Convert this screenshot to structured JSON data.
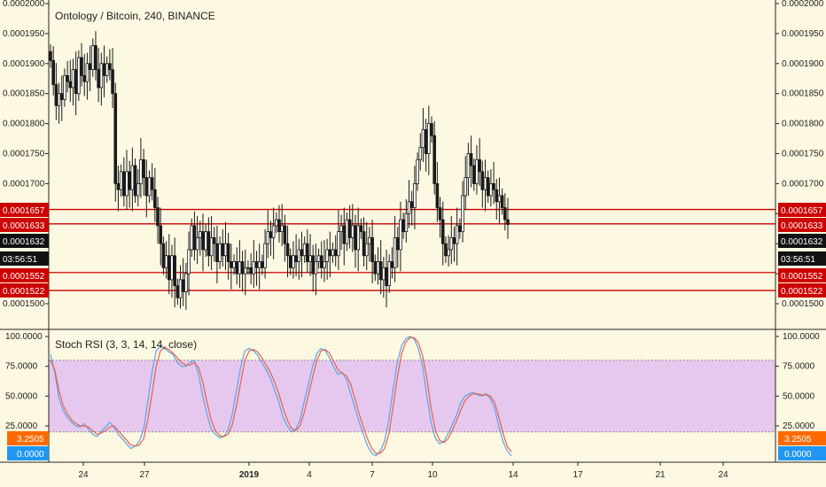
{
  "chart_title": "Ontology / Bitcoin, 240, BINANCE",
  "indicator_title": "Stoch RSI (3, 3, 14, 14, close)",
  "colors": {
    "background": "#fdf8e1",
    "candle": "#1a1a1a",
    "level_line": "#cc0000",
    "stoch_k": "#58a6ea",
    "stoch_d": "#e8604c",
    "stoch_band": "#e6c8ee"
  },
  "chart_data": [
    {
      "type": "candlestick",
      "title": "Ontology / Bitcoin, 240, BINANCE",
      "y_ticks": [
        "0.0001500",
        "0.0001550",
        "0.0001600",
        "0.0001650",
        "0.0001700",
        "0.0001750",
        "0.0001800",
        "0.0001850",
        "0.0001900",
        "0.0001950",
        "0.0002000"
      ],
      "ylim": [
        0.000148,
        0.000201
      ],
      "x_ticks": [
        "24",
        "27",
        "2019",
        "4",
        "7",
        "10",
        "14",
        "17",
        "21",
        "24"
      ],
      "horizontal_levels": [
        0.0001657,
        0.0001633,
        0.0001552,
        0.0001522
      ],
      "price_labels": [
        {
          "text": "0.0001657",
          "color": "#cc0000"
        },
        {
          "text": "0.0001633",
          "color": "#cc0000"
        },
        {
          "text": "0.0001632",
          "color": "#111111"
        },
        {
          "text": "03:56:51",
          "color": "#111111"
        },
        {
          "text": "0.0001552",
          "color": "#cc0000"
        },
        {
          "text": "0.0001522",
          "color": "#cc0000"
        }
      ],
      "closes": [
        0.0001905,
        0.0001865,
        0.000183,
        0.000185,
        0.000184,
        0.000188,
        0.000187,
        0.000186,
        0.000189,
        0.000185,
        0.000191,
        0.000188,
        0.000187,
        0.00019,
        0.000189,
        0.000193,
        0.000189,
        0.000186,
        0.00019,
        0.000188,
        0.00019,
        0.000189,
        0.000185,
        0.00017,
        0.000169,
        0.000172,
        0.000168,
        0.000172,
        0.000169,
        0.000173,
        0.000168,
        0.00017,
        0.000174,
        0.000171,
        0.000168,
        0.000171,
        0.000169,
        0.000166,
        0.000163,
        0.00016,
        0.000156,
        0.000158,
        0.000154,
        0.000158,
        0.000153,
        0.000151,
        0.000154,
        0.000152,
        0.000155,
        0.000159,
        0.000163,
        0.000159,
        0.000161,
        0.000162,
        0.000159,
        0.000162,
        0.000158,
        0.000161,
        0.00016,
        0.000157,
        0.00016,
        0.000158,
        0.00016,
        0.000157,
        0.000156,
        0.000157,
        0.000155,
        0.000157,
        0.000155,
        0.000156,
        0.000156,
        0.000155,
        0.000157,
        0.000156,
        0.000157,
        0.000156,
        0.00016,
        0.000162,
        0.000161,
        0.000163,
        0.000164,
        0.000162,
        0.000163,
        0.00016,
        0.000158,
        0.000156,
        0.000158,
        0.000157,
        0.000159,
        0.000158,
        0.00016,
        0.000157,
        0.000158,
        0.000155,
        0.000157,
        0.000158,
        0.000156,
        0.000157,
        0.000159,
        0.000158,
        0.000159,
        0.000158,
        0.000162,
        0.000163,
        0.00016,
        0.000164,
        0.000161,
        0.000163,
        0.000159,
        0.000163,
        0.000162,
        0.000158,
        0.00016,
        0.000161,
        0.000157,
        0.000155,
        0.000157,
        0.000154,
        0.000156,
        0.000153,
        0.000157,
        0.000156,
        0.000161,
        0.000159,
        0.000164,
        0.000162,
        0.000165,
        0.000167,
        0.000166,
        0.00017,
        0.000174,
        0.000176,
        0.000179,
        0.000175,
        0.00018,
        0.000178,
        0.00017,
        0.000166,
        0.000164,
        0.00016,
        0.000158,
        0.000159,
        0.000161,
        0.00016,
        0.000163,
        0.000162,
        0.000168,
        0.000171,
        0.000175,
        0.000173,
        0.00017,
        0.000174,
        0.000172,
        0.000169,
        0.000171,
        0.000168,
        0.00017,
        0.000169,
        0.000167,
        0.000168,
        0.000166,
        0.000164,
        0.0001632
      ]
    },
    {
      "type": "line",
      "title": "Stoch RSI (3, 3, 14, 14, close)",
      "y_ticks": [
        "25.0000",
        "50.0000",
        "75.0000",
        "100.0000"
      ],
      "ylim": [
        -8,
        104
      ],
      "band": [
        20,
        80
      ],
      "value_labels": [
        {
          "text": "3.2505",
          "color": "#ff6a00"
        },
        {
          "text": "0.0000",
          "color": "#2196f3"
        }
      ],
      "series": [
        {
          "values": [
            85,
            70,
            48,
            38,
            32,
            28,
            25,
            24,
            27,
            22,
            18,
            16,
            20,
            24,
            28,
            24,
            18,
            14,
            10,
            6,
            8,
            12,
            22,
            45,
            70,
            88,
            92,
            90,
            87,
            85,
            78,
            75,
            75,
            78,
            80,
            68,
            50,
            35,
            22,
            18,
            15,
            16,
            22,
            35,
            55,
            75,
            88,
            90,
            88,
            84,
            78,
            72,
            65,
            55,
            45,
            32,
            25,
            20,
            22,
            30,
            45,
            60,
            75,
            86,
            90,
            88,
            82,
            74,
            68,
            70,
            64,
            52,
            40,
            28,
            18,
            8,
            2,
            0,
            4,
            12,
            30,
            55,
            78,
            92,
            98,
            100,
            98,
            90,
            75,
            50,
            28,
            15,
            10,
            12,
            18,
            26,
            34,
            44,
            50,
            52,
            53,
            51,
            50,
            52,
            48,
            40,
            25,
            12,
            4,
            0
          ]
        },
        {
          "values": [
            80,
            72,
            55,
            42,
            35,
            30,
            27,
            25,
            25,
            24,
            21,
            18,
            19,
            21,
            24,
            25,
            21,
            17,
            13,
            9,
            8,
            9,
            14,
            30,
            52,
            75,
            88,
            91,
            89,
            86,
            82,
            78,
            76,
            76,
            78,
            74,
            62,
            45,
            30,
            21,
            17,
            16,
            18,
            26,
            42,
            62,
            80,
            88,
            89,
            87,
            82,
            76,
            70,
            62,
            52,
            40,
            30,
            23,
            21,
            25,
            36,
            51,
            66,
            80,
            88,
            89,
            86,
            79,
            72,
            69,
            67,
            60,
            48,
            35,
            24,
            14,
            6,
            2,
            2,
            6,
            18,
            40,
            65,
            85,
            95,
            99,
            99,
            95,
            84,
            65,
            40,
            22,
            13,
            11,
            14,
            21,
            29,
            38,
            46,
            50,
            52,
            52,
            51,
            51,
            50,
            45,
            33,
            19,
            8,
            3.25
          ]
        }
      ]
    }
  ]
}
